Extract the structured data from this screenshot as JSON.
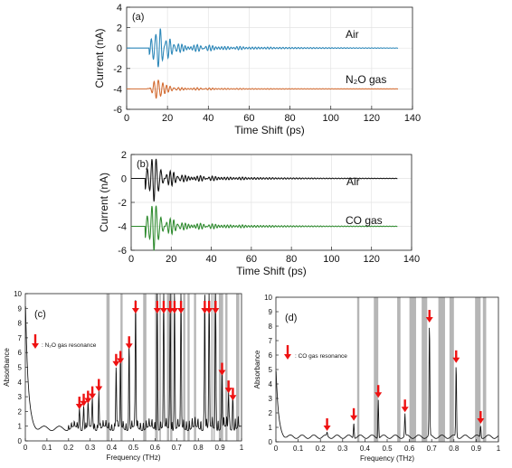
{
  "chart_data": [
    {
      "type": "line",
      "panel_label": "(a)",
      "xlabel": "Time Shift (ps)",
      "ylabel": "Current (nA)",
      "xlim": [
        0,
        140
      ],
      "ylim": [
        -6,
        4
      ],
      "xticks": [
        "0",
        "20",
        "40",
        "60",
        "80",
        "100",
        "120",
        "140"
      ],
      "yticks": [
        "-6",
        "-4",
        "-2",
        "0",
        "2",
        "4"
      ],
      "grid": true,
      "series": [
        {
          "name": "Air",
          "color": "#2a86b8",
          "offset": 0,
          "x_range": [
            0,
            133
          ],
          "peak_time": 16,
          "peak_amplitude": 2.2
        },
        {
          "name": "N₂O gas",
          "color": "#d2692e",
          "offset": -4,
          "x_range": [
            0,
            133
          ],
          "peak_time": 15,
          "peak_amplitude": 0.8
        }
      ]
    },
    {
      "type": "line",
      "panel_label": "(b)",
      "xlabel": "Time Shift (ps)",
      "ylabel": "Current (nA)",
      "xlim": [
        0,
        140
      ],
      "ylim": [
        -6,
        2
      ],
      "xticks": [
        "0",
        "20",
        "40",
        "60",
        "80",
        "100",
        "120",
        "140"
      ],
      "yticks": [
        "-6",
        "-4",
        "-2",
        "0",
        "2"
      ],
      "grid": true,
      "series": [
        {
          "name": "Air",
          "color": "#111111",
          "offset": 0,
          "x_range": [
            0,
            133
          ],
          "peak_time": 12,
          "peak_amplitude": 1.8
        },
        {
          "name": "CO gas",
          "color": "#2d8a2d",
          "offset": -4,
          "x_range": [
            0,
            133
          ],
          "peak_time": 12,
          "peak_amplitude": 1.9
        }
      ]
    },
    {
      "type": "line",
      "panel_label": "(c)",
      "xlabel": "Frequency (THz)",
      "ylabel": "Absorbance",
      "xlim": [
        0,
        1
      ],
      "ylim": [
        0,
        10
      ],
      "xticks": [
        "0",
        "0.1",
        "0.2",
        "0.3",
        "0.4",
        "0.5",
        "0.6",
        "0.7",
        "0.8",
        "0.9",
        "1"
      ],
      "yticks": [
        "0",
        "1",
        "2",
        "3",
        "4",
        "5",
        "6",
        "7",
        "8",
        "9",
        "10"
      ],
      "legend_text": ": N₂O gas resonance",
      "resonance_arrows": [
        0.25,
        0.27,
        0.29,
        0.31,
        0.34,
        0.42,
        0.44,
        0.48,
        0.51,
        0.61,
        0.64,
        0.67,
        0.69,
        0.72,
        0.83,
        0.85,
        0.88,
        0.91,
        0.94,
        0.96
      ],
      "peaks": [
        [
          0.25,
          1.9
        ],
        [
          0.27,
          2.1
        ],
        [
          0.29,
          2.3
        ],
        [
          0.31,
          2.6
        ],
        [
          0.34,
          3.1
        ],
        [
          0.42,
          4.8
        ],
        [
          0.44,
          5.0
        ],
        [
          0.48,
          6.0
        ],
        [
          0.51,
          9.5
        ],
        [
          0.61,
          10.0
        ],
        [
          0.64,
          10.0
        ],
        [
          0.67,
          10.0
        ],
        [
          0.69,
          10.0
        ],
        [
          0.72,
          10.0
        ],
        [
          0.83,
          10.0
        ],
        [
          0.85,
          10.0
        ],
        [
          0.88,
          10.0
        ],
        [
          0.91,
          4.2
        ],
        [
          0.94,
          3.0
        ],
        [
          0.96,
          2.5
        ]
      ],
      "shaded_bands": [
        [
          0.375,
          0.39
        ],
        [
          0.44,
          0.45
        ],
        [
          0.545,
          0.56
        ],
        [
          0.6,
          0.613
        ],
        [
          0.62,
          0.627
        ],
        [
          0.655,
          0.665
        ],
        [
          0.67,
          0.68
        ],
        [
          0.73,
          0.74
        ],
        [
          0.75,
          0.76
        ],
        [
          0.78,
          0.79
        ],
        [
          0.86,
          0.865
        ],
        [
          0.87,
          0.875
        ],
        [
          0.895,
          0.915
        ],
        [
          0.925,
          0.935
        ],
        [
          0.975,
          0.99
        ]
      ]
    },
    {
      "type": "line",
      "panel_label": "(d)",
      "xlabel": "Frequency (THz)",
      "ylabel": "Absorbance",
      "xlim": [
        0,
        1
      ],
      "ylim": [
        0,
        10
      ],
      "xticks": [
        "0",
        "0.1",
        "0.2",
        "0.3",
        "0.4",
        "0.5",
        "0.6",
        "0.7",
        "0.8",
        "0.9",
        "1"
      ],
      "yticks": [
        "0",
        "1",
        "2",
        "3",
        "4",
        "5",
        "6",
        "7",
        "8",
        "9",
        "10"
      ],
      "legend_text": ": CO gas resonance",
      "resonance_arrows": [
        0.23,
        0.35,
        0.46,
        0.58,
        0.69,
        0.81,
        0.92
      ],
      "peaks": [
        [
          0.23,
          0.5
        ],
        [
          0.35,
          1.2
        ],
        [
          0.46,
          2.8
        ],
        [
          0.58,
          1.8
        ],
        [
          0.69,
          8.0
        ],
        [
          0.81,
          5.2
        ],
        [
          0.92,
          1.0
        ]
      ],
      "shaded_bands": [
        [
          0.365,
          0.375
        ],
        [
          0.44,
          0.46
        ],
        [
          0.545,
          0.56
        ],
        [
          0.6,
          0.63
        ],
        [
          0.655,
          0.68
        ],
        [
          0.73,
          0.76
        ],
        [
          0.78,
          0.8
        ],
        [
          0.895,
          0.92
        ],
        [
          0.93,
          0.945
        ]
      ]
    }
  ]
}
